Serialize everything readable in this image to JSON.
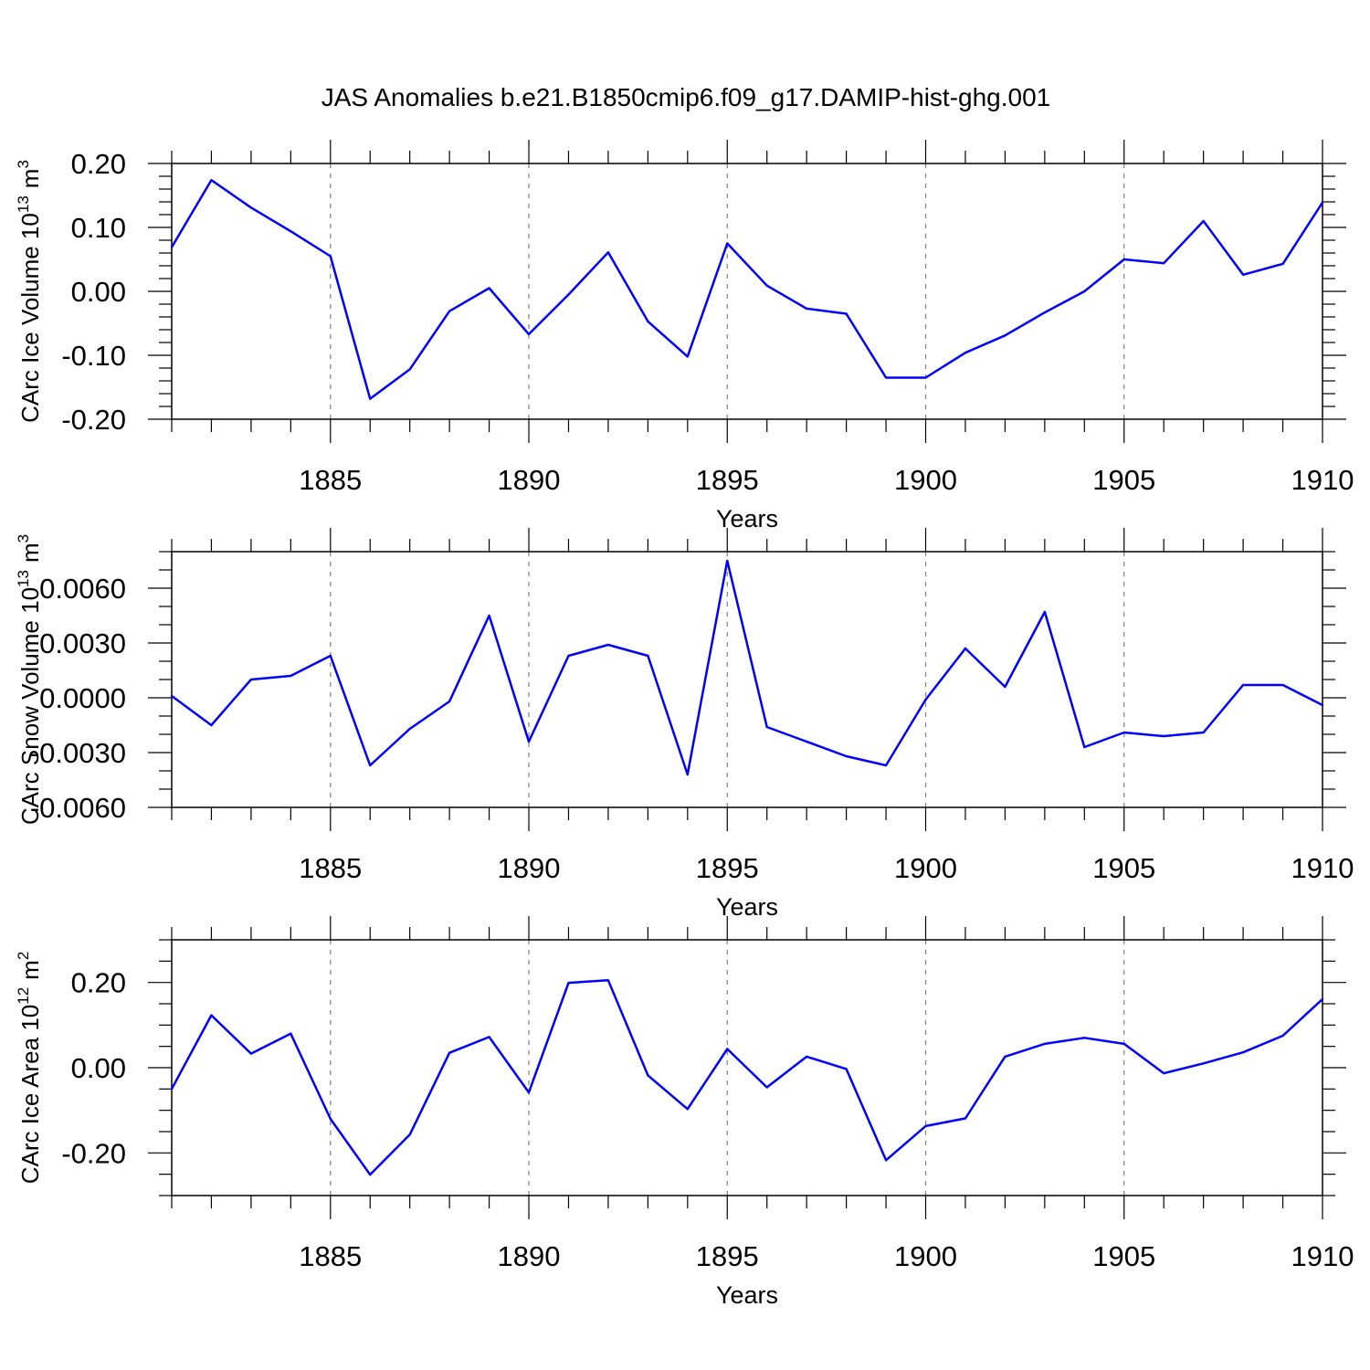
{
  "colors": {
    "line": "#0000ff",
    "axis": "#000000",
    "grid": "#808080",
    "background": "#ffffff"
  },
  "chart_data": [
    {
      "type": "line",
      "title": "JAS Anomalies b.e21.B1850cmip6.f09_g17.DAMIP-hist-ghg.001",
      "xlabel": "Years",
      "ylabel": "CArc Ice Volume 10",
      "ylabel_exp": "13",
      "ylabel_unit": "m",
      "ylabel_unit_exp": "3",
      "xlim": [
        1881,
        1910
      ],
      "ylim": [
        -0.2,
        0.2
      ],
      "xticks": [
        1885,
        1890,
        1895,
        1900,
        1905,
        1910
      ],
      "xtick_labels": [
        "1885",
        "1890",
        "1895",
        "1900",
        "1905",
        "1910"
      ],
      "yticks": [
        -0.2,
        -0.1,
        0.0,
        0.1,
        0.2
      ],
      "ytick_labels": [
        "-0.20",
        "-0.10",
        "0.00",
        "0.10",
        "0.20"
      ],
      "y_minor_step": 0.02,
      "grid": "vertical dashed at major x ticks",
      "series": [
        {
          "name": "CArc Ice Volume",
          "x": [
            1881,
            1882,
            1883,
            1884,
            1885,
            1886,
            1887,
            1888,
            1889,
            1890,
            1891,
            1892,
            1893,
            1894,
            1895,
            1896,
            1897,
            1898,
            1899,
            1900,
            1901,
            1902,
            1903,
            1904,
            1905,
            1906,
            1907,
            1908,
            1909,
            1910
          ],
          "values": [
            0.069,
            0.174,
            0.131,
            0.094,
            0.055,
            -0.168,
            -0.122,
            -0.031,
            0.005,
            -0.067,
            -0.005,
            0.061,
            -0.047,
            -0.102,
            0.075,
            0.009,
            -0.027,
            -0.035,
            -0.135,
            -0.135,
            -0.096,
            -0.069,
            -0.033,
            0.0,
            0.05,
            0.044,
            0.11,
            0.026,
            0.043,
            0.139
          ]
        }
      ]
    },
    {
      "type": "line",
      "title": "",
      "xlabel": "Years",
      "ylabel": "CArc Snow Volume 10",
      "ylabel_exp": "13",
      "ylabel_unit": "m",
      "ylabel_unit_exp": "3",
      "xlim": [
        1881,
        1910
      ],
      "ylim": [
        -0.006,
        0.008
      ],
      "xticks": [
        1885,
        1890,
        1895,
        1900,
        1905,
        1910
      ],
      "xtick_labels": [
        "1885",
        "1890",
        "1895",
        "1900",
        "1905",
        "1910"
      ],
      "yticks": [
        -0.006,
        -0.003,
        0.0,
        0.003,
        0.006
      ],
      "ytick_labels": [
        "-0.0060",
        "-0.0030",
        "0.0000",
        "0.0030",
        "0.0060"
      ],
      "y_minor_step": 0.001,
      "grid": "vertical dashed at major x ticks",
      "series": [
        {
          "name": "CArc Snow Volume",
          "x": [
            1881,
            1882,
            1883,
            1884,
            1885,
            1886,
            1887,
            1888,
            1889,
            1890,
            1891,
            1892,
            1893,
            1894,
            1895,
            1896,
            1897,
            1898,
            1899,
            1900,
            1901,
            1902,
            1903,
            1904,
            1905,
            1906,
            1907,
            1908,
            1909,
            1910
          ],
          "values": [
            0.0001,
            -0.0015,
            0.001,
            0.0012,
            0.0023,
            -0.0037,
            -0.0017,
            -0.0002,
            0.0045,
            -0.0024,
            0.0023,
            0.0029,
            0.0023,
            -0.0042,
            0.0075,
            -0.0016,
            -0.0024,
            -0.0032,
            -0.0037,
            -0.0001,
            0.0027,
            0.0006,
            0.0047,
            -0.0027,
            -0.0019,
            -0.0021,
            -0.0019,
            0.0007,
            0.0007,
            -0.0004
          ]
        }
      ]
    },
    {
      "type": "line",
      "title": "",
      "xlabel": "Years",
      "ylabel": "CArc Ice Area 10",
      "ylabel_exp": "12",
      "ylabel_unit": "m",
      "ylabel_unit_exp": "2",
      "xlim": [
        1881,
        1910
      ],
      "ylim": [
        -0.3,
        0.3
      ],
      "xticks": [
        1885,
        1890,
        1895,
        1900,
        1905,
        1910
      ],
      "xtick_labels": [
        "1885",
        "1890",
        "1895",
        "1900",
        "1905",
        "1910"
      ],
      "yticks": [
        -0.2,
        0.0,
        0.2
      ],
      "ytick_labels": [
        "-0.20",
        "0.00",
        "0.20"
      ],
      "y_minor_step": 0.05,
      "grid": "vertical dashed at major x ticks",
      "series": [
        {
          "name": "CArc Ice Area",
          "x": [
            1881,
            1882,
            1883,
            1884,
            1885,
            1886,
            1887,
            1888,
            1889,
            1890,
            1891,
            1892,
            1893,
            1894,
            1895,
            1896,
            1897,
            1898,
            1899,
            1900,
            1901,
            1902,
            1903,
            1904,
            1905,
            1906,
            1907,
            1908,
            1909,
            1910
          ],
          "values": [
            -0.05,
            0.123,
            0.033,
            0.08,
            -0.12,
            -0.251,
            -0.157,
            0.035,
            0.072,
            -0.058,
            0.199,
            0.205,
            -0.018,
            -0.097,
            0.044,
            -0.046,
            0.026,
            -0.003,
            -0.217,
            -0.137,
            -0.119,
            0.026,
            0.056,
            0.07,
            0.056,
            -0.013,
            0.01,
            0.036,
            0.075,
            0.161
          ]
        }
      ]
    }
  ]
}
